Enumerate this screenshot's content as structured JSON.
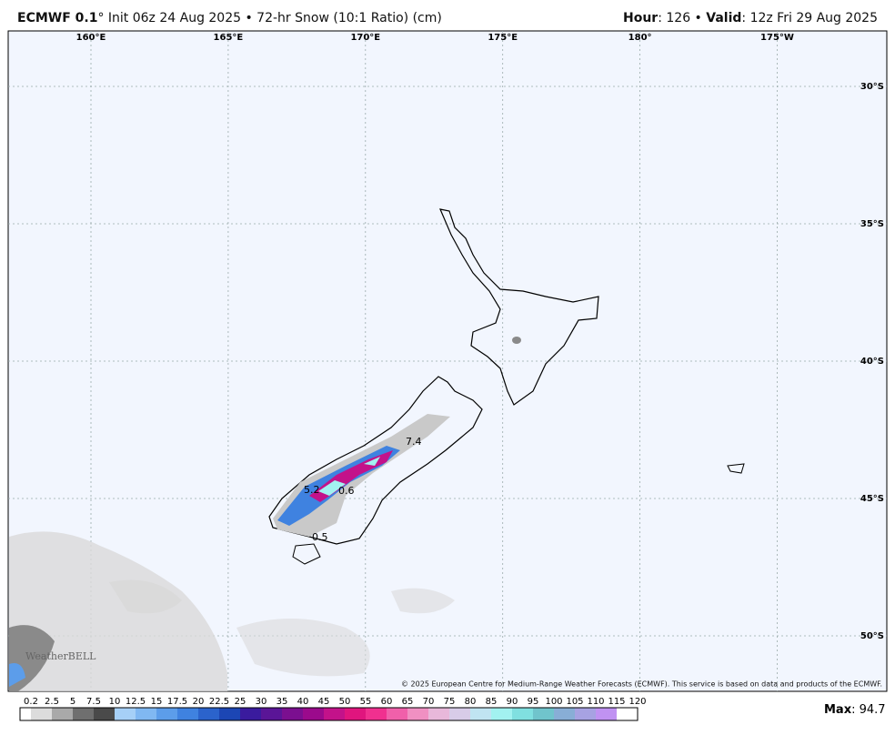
{
  "header": {
    "model": "ECMWF 0.1",
    "description": "° Init 06z 24 Aug 2025 • 72-hr Snow (10:1 Ratio) (cm)",
    "hour_label": "Hour",
    "hour_value": ": 126 • ",
    "valid_label": "Valid",
    "valid_value": ": 12z Fri 29 Aug 2025"
  },
  "map": {
    "longitude_labels": [
      "160°E",
      "165°E",
      "170°E",
      "175°E",
      "180°",
      "175°W"
    ],
    "latitude_labels": [
      "30°S",
      "35°S",
      "40°S",
      "45°S",
      "50°S"
    ],
    "contour_labels": [
      "7.4",
      "5.2",
      "0.6",
      "0.5"
    ],
    "watermark": "WeatherBELL",
    "copyright": "© 2025 European Centre for Medium-Range Weather Forecasts (ECMWF). This service is based on data and products of the ECMWF."
  },
  "colorbar": {
    "labels": [
      0.2,
      2.5,
      5,
      7.5,
      10,
      12.5,
      15,
      17.5,
      20,
      22.5,
      25,
      30,
      35,
      40,
      45,
      50,
      55,
      60,
      65,
      70,
      75,
      80,
      85,
      90,
      95,
      100,
      105,
      110,
      115,
      120
    ],
    "colors": [
      "#ffffff",
      "#dcdcdc",
      "#a9a9a9",
      "#6f6f6f",
      "#4a4a4a",
      "#a6d0f7",
      "#80b8f2",
      "#5c9dea",
      "#3f82e0",
      "#2b63cc",
      "#1c46b4",
      "#3a1b9e",
      "#5a1597",
      "#7b0f90",
      "#9b0a8c",
      "#c3128a",
      "#e0157e",
      "#f0308f",
      "#f060aa",
      "#f090c2",
      "#e8b8da",
      "#d8cce8",
      "#c0e4f2",
      "#a2f2f0",
      "#80e0e0",
      "#70c4cc",
      "#88aed6",
      "#a7a2e2",
      "#c092f2"
    ],
    "max_label": "Max",
    "max_value": ": 94.7"
  }
}
